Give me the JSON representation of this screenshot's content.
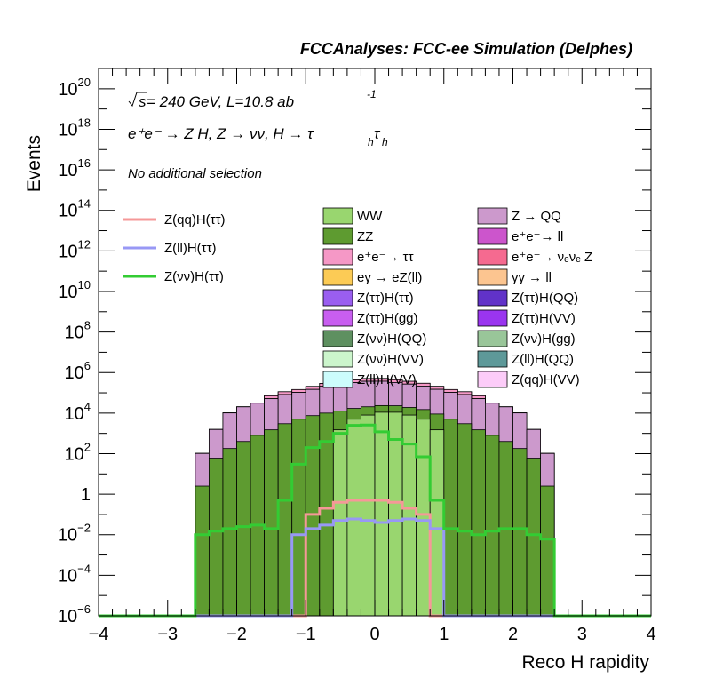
{
  "chart_data": {
    "type": "histogram",
    "title": "FCCAnalyses: FCC-ee Simulation (Delphes)",
    "xlabel": "Reco H rapidity",
    "ylabel": "Events",
    "xlim": [
      -4,
      4
    ],
    "ylim": [
      1e-06,
      1e+21
    ],
    "log_y": true,
    "grid": false,
    "annotations": {
      "sqrt_s": "s",
      "energy": " = 240 GeV, L=10.8 ab",
      "lumi_exp": "-1",
      "process": "e⁺e⁻ → Z H, Z → νν, H → τ",
      "process_sub": "h",
      "selection": "No additional selection"
    },
    "x_ticks": [
      "−4",
      "−3",
      "−2",
      "−1",
      "0",
      "1",
      "2",
      "3",
      "4"
    ],
    "y_ticks": [
      {
        "base": "10",
        "exp": "−6"
      },
      {
        "base": "10",
        "exp": "−4"
      },
      {
        "base": "10",
        "exp": "−2"
      },
      {
        "base": "1",
        "exp": ""
      },
      {
        "base": "10",
        "exp": "2"
      },
      {
        "base": "10",
        "exp": "4"
      },
      {
        "base": "10",
        "exp": "6"
      },
      {
        "base": "10",
        "exp": "8"
      },
      {
        "base": "10",
        "exp": "10"
      },
      {
        "base": "10",
        "exp": "12"
      },
      {
        "base": "10",
        "exp": "14"
      },
      {
        "base": "10",
        "exp": "16"
      },
      {
        "base": "10",
        "exp": "18"
      },
      {
        "base": "10",
        "exp": "20"
      }
    ],
    "bins": {
      "start": -4,
      "width": 0.2,
      "count": 40
    },
    "stack_series": [
      {
        "name": "WW",
        "color": "#99d66f",
        "values": [
          0,
          0,
          0,
          0,
          0,
          0,
          0,
          0,
          0,
          0,
          0,
          0,
          0,
          0,
          0,
          0,
          0,
          1500.0,
          5000.0,
          8000.0,
          11000.0,
          11000.0,
          8000.0,
          5000.0,
          1500.0,
          0,
          0,
          0,
          0,
          0,
          0,
          0,
          0,
          0,
          0,
          0,
          0,
          0,
          0,
          0
        ]
      },
      {
        "name": "ZZ",
        "color": "#5e9b30",
        "values": [
          0,
          0,
          0,
          0,
          0,
          0,
          0,
          2.5,
          60,
          180,
          400,
          800,
          1500,
          3000,
          5000,
          7500,
          10000.0,
          11000.0,
          12000.0,
          12500.0,
          12500.0,
          12000.0,
          11000.0,
          10000.0,
          7500,
          5000,
          3000,
          1500,
          800,
          400,
          180,
          60,
          2.5,
          0,
          0,
          0,
          0,
          0,
          0,
          0
        ]
      },
      {
        "name": "Z → QQ",
        "color": "#cc99cc",
        "values": [
          0,
          0,
          0,
          0,
          0,
          0,
          0,
          100,
          1500,
          10000.0,
          20000.0,
          30000.0,
          50000.0,
          80000.0,
          100000.0,
          140000.0,
          200000.0,
          250000.0,
          300000.0,
          350000.0,
          350000.0,
          300000.0,
          250000.0,
          200000.0,
          140000.0,
          100000.0,
          80000.0,
          50000.0,
          30000.0,
          20000.0,
          10000.0,
          1500,
          100,
          0,
          0,
          0,
          0,
          0,
          0,
          0
        ]
      },
      {
        "name": "e⁺e⁻ → ll",
        "color": "#cc55cc",
        "values": [
          0,
          0,
          0,
          0,
          0,
          0,
          0,
          0,
          0,
          0,
          0,
          0,
          0,
          0,
          0,
          0,
          0,
          0,
          0,
          0,
          0,
          0,
          0,
          0,
          0,
          0,
          0,
          0,
          0,
          0,
          0,
          0,
          0,
          0,
          0,
          0,
          0,
          0,
          0,
          0
        ]
      },
      {
        "name": "e⁺e⁻ → ττ",
        "color": "#f598c6",
        "values": [
          0,
          0,
          0,
          0,
          0,
          0,
          0,
          0,
          0,
          0,
          0,
          0,
          20000.0,
          30000.0,
          40000.0,
          60000.0,
          80000.0,
          100000.0,
          120000.0,
          140000.0,
          140000.0,
          120000.0,
          100000.0,
          80000.0,
          60000.0,
          40000.0,
          30000.0,
          20000.0,
          0,
          0,
          0,
          0,
          0,
          0,
          0,
          0,
          0,
          0,
          0,
          0
        ]
      },
      {
        "name": "e⁺e⁻ → νₑνₑ Z",
        "color": "#f56a90",
        "values": [
          0,
          0,
          0,
          0,
          0,
          0,
          0,
          0,
          0,
          0,
          0,
          0,
          0,
          0,
          0,
          80,
          150,
          250,
          300,
          400,
          400,
          300,
          250,
          150,
          80,
          0,
          0,
          0,
          0,
          0,
          0,
          0,
          0,
          0,
          0,
          0,
          0,
          0,
          0,
          0
        ]
      }
    ],
    "legend_entries": [
      {
        "name": "WW",
        "color": "#99d66f"
      },
      {
        "name": "Z → QQ",
        "color": "#cc99cc"
      },
      {
        "name": "ZZ",
        "color": "#5e9b30"
      },
      {
        "name": "e⁺e⁻→ ll",
        "color": "#cc55cc"
      },
      {
        "name": "e⁺e⁻→ ττ",
        "color": "#f598c6"
      },
      {
        "name": "e⁺e⁻→ νₑνₑ Z",
        "color": "#f56a90"
      },
      {
        "name": "eγ → eZ(ll)",
        "color": "#fccb55"
      },
      {
        "name": "γγ → ll",
        "color": "#fcc590"
      },
      {
        "name": "Z(ττ)H(ττ)",
        "color": "#9a5ef0"
      },
      {
        "name": "Z(ττ)H(QQ)",
        "color": "#6132c8"
      },
      {
        "name": "Z(ττ)H(gg)",
        "color": "#c85ef0"
      },
      {
        "name": "Z(ττ)H(VV)",
        "color": "#9a35ef"
      },
      {
        "name": "Z(νν)H(QQ)",
        "color": "#5e9060"
      },
      {
        "name": "Z(νν)H(gg)",
        "color": "#99c699"
      },
      {
        "name": "Z(νν)H(VV)",
        "color": "#ccf5cc"
      },
      {
        "name": "Z(ll)H(QQ)",
        "color": "#5e9999"
      },
      {
        "name": "Z(ll)H(VV)",
        "color": "#ccfcfc"
      },
      {
        "name": "Z(qq)H(VV)",
        "color": "#fcccf8"
      }
    ],
    "signal_series": [
      {
        "name": "Z(qq)H(ττ)",
        "color": "#f59898",
        "values": [
          0,
          0,
          0,
          0,
          0,
          0,
          0,
          0,
          0,
          0,
          0,
          0,
          0,
          0,
          0,
          0.1,
          0.2,
          0.4,
          0.5,
          0.5,
          0.5,
          0.4,
          0.2,
          0.1,
          0,
          0,
          0,
          0,
          0,
          0,
          0,
          0,
          0,
          0,
          0,
          0,
          0,
          0,
          0,
          0
        ]
      },
      {
        "name": "Z(ll)H(ττ)",
        "color": "#9898f5",
        "values": [
          0,
          0,
          0,
          0,
          0,
          0,
          0,
          0,
          0,
          0,
          0,
          0,
          0,
          0,
          0.01,
          0.02,
          0.03,
          0.05,
          0.06,
          0.05,
          0.04,
          0.05,
          0.06,
          0.05,
          0.02,
          0,
          0,
          0,
          0,
          0,
          0,
          0,
          0,
          0,
          0,
          0,
          0,
          0,
          0,
          0
        ]
      },
      {
        "name": "Z(νν)H(ττ)",
        "color": "#33cc33",
        "values": [
          0,
          0,
          0,
          0,
          0,
          0,
          0,
          0.01,
          0.015,
          0.02,
          0.025,
          0.03,
          0.02,
          0.5,
          30,
          200,
          400,
          1000,
          2500,
          2600,
          1200,
          500,
          300,
          70,
          0.5,
          0.02,
          0.015,
          0.01,
          0.015,
          0.02,
          0.02,
          0.01,
          0.006,
          0,
          0,
          0,
          0,
          0,
          0,
          0
        ]
      }
    ],
    "signal_legend": [
      {
        "name": "Z(qq)H(ττ)",
        "color": "#f59898"
      },
      {
        "name": "Z(ll)H(ττ)",
        "color": "#9898f5"
      },
      {
        "name": "Z(νν)H(ττ)",
        "color": "#33cc33"
      }
    ]
  }
}
